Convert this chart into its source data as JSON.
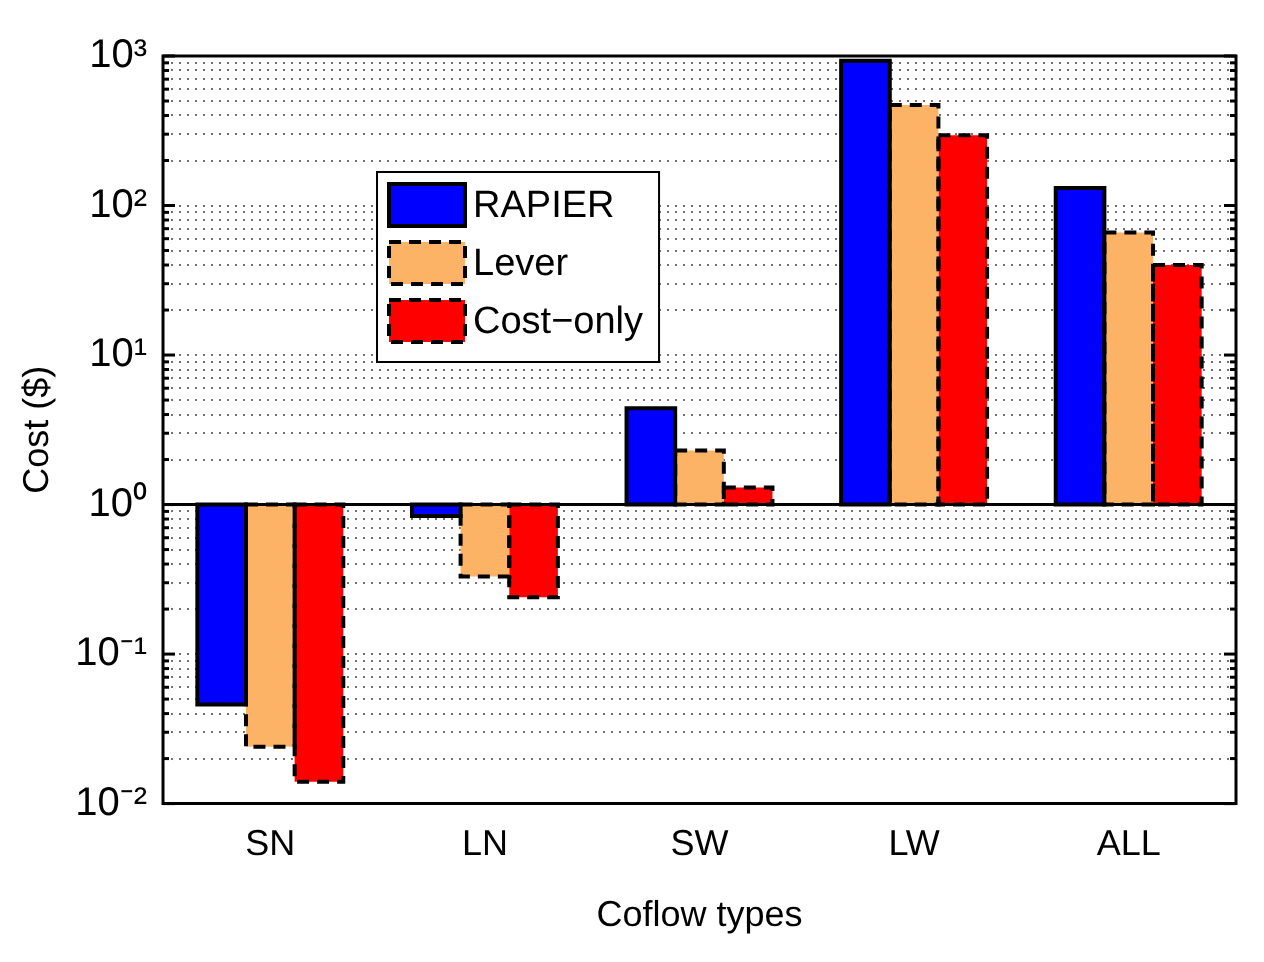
{
  "chart_data": {
    "type": "bar",
    "xlabel": "Coflow types",
    "ylabel": "Cost ($)",
    "categories": [
      "SN",
      "LN",
      "SW",
      "LW",
      "ALL"
    ],
    "series": [
      {
        "name": "RAPIER",
        "color": "#0000ff",
        "line_style": "solid",
        "base": [
          1,
          1,
          1,
          1,
          1
        ],
        "values": [
          -0.954,
          -0.16,
          3.4,
          929,
          130
        ]
      },
      {
        "name": "Lever",
        "color": "#fdb366",
        "line_style": "dashed",
        "base": [
          1,
          1,
          1,
          1,
          1
        ],
        "values": [
          -0.976,
          -0.67,
          1.3,
          469,
          65
        ]
      },
      {
        "name": "Cost−only",
        "color": "#ff0000",
        "line_style": "dashed",
        "base": [
          1,
          1,
          1,
          1,
          1
        ],
        "values": [
          -0.986,
          -0.76,
          0.3,
          294,
          39
        ]
      }
    ],
    "log": "y",
    "ylim": [
      0.01,
      1000
    ],
    "yticks": [
      {
        "value": 0.01,
        "label": "10⁻²"
      },
      {
        "value": 0.02,
        "label": null
      },
      {
        "value": 0.03,
        "label": null
      },
      {
        "value": 0.04,
        "label": null
      },
      {
        "value": 0.05,
        "label": null
      },
      {
        "value": 0.06,
        "label": null
      },
      {
        "value": 0.07,
        "label": null
      },
      {
        "value": 0.08,
        "label": null
      },
      {
        "value": 0.09,
        "label": null
      },
      {
        "value": 0.1,
        "label": "10⁻¹"
      },
      {
        "value": 0.2,
        "label": null
      },
      {
        "value": 0.3,
        "label": null
      },
      {
        "value": 0.4,
        "label": null
      },
      {
        "value": 0.5,
        "label": null
      },
      {
        "value": 0.6,
        "label": null
      },
      {
        "value": 0.7,
        "label": null
      },
      {
        "value": 0.8,
        "label": null
      },
      {
        "value": 0.9,
        "label": null
      },
      {
        "value": 1,
        "label": "10⁰"
      },
      {
        "value": 2,
        "label": null
      },
      {
        "value": 3,
        "label": null
      },
      {
        "value": 4,
        "label": null
      },
      {
        "value": 5,
        "label": null
      },
      {
        "value": 6,
        "label": null
      },
      {
        "value": 7,
        "label": null
      },
      {
        "value": 8,
        "label": null
      },
      {
        "value": 9,
        "label": null
      },
      {
        "value": 10,
        "label": "10¹"
      },
      {
        "value": 20,
        "label": null
      },
      {
        "value": 30,
        "label": null
      },
      {
        "value": 40,
        "label": null
      },
      {
        "value": 50,
        "label": null
      },
      {
        "value": 60,
        "label": null
      },
      {
        "value": 70,
        "label": null
      },
      {
        "value": 80,
        "label": null
      },
      {
        "value": 90,
        "label": null
      },
      {
        "value": 100,
        "label": "10²"
      },
      {
        "value": 200,
        "label": null
      },
      {
        "value": 300,
        "label": null
      },
      {
        "value": 400,
        "label": null
      },
      {
        "value": 500,
        "label": null
      },
      {
        "value": 600,
        "label": null
      },
      {
        "value": 700,
        "label": null
      },
      {
        "value": 800,
        "label": null
      },
      {
        "value": 900,
        "label": null
      },
      {
        "value": 1000,
        "label": "10³"
      }
    ],
    "ref_lines": [
      {
        "axis": "y",
        "value": 1,
        "color": "#000000"
      }
    ],
    "grid": "y",
    "legend": "top left"
  }
}
